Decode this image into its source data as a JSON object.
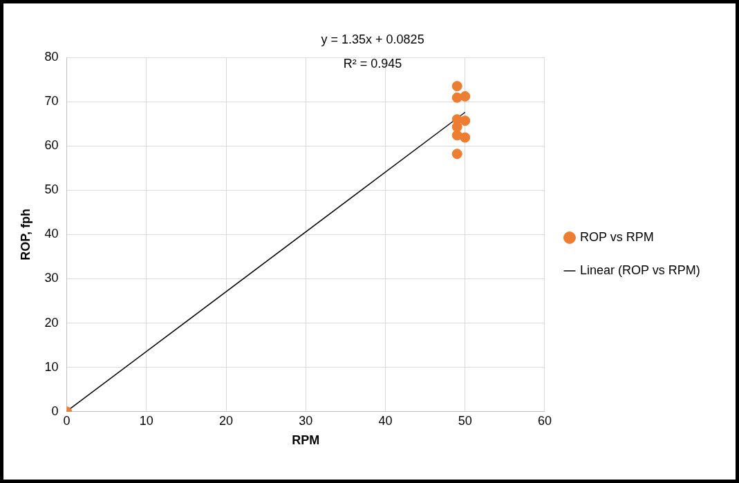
{
  "chart_data": {
    "type": "scatter",
    "xlabel": "RPM",
    "ylabel": "ROP, fph",
    "xlim": [
      0,
      60
    ],
    "xticks": [
      0,
      10,
      20,
      30,
      40,
      50,
      60
    ],
    "ylim": [
      0,
      80
    ],
    "yticks": [
      0,
      10,
      20,
      30,
      40,
      50,
      60,
      70,
      80
    ],
    "grid": true,
    "legend": "right",
    "marker": "circle",
    "annotations": [
      "y = 1.35x + 0.0825",
      "R² = 0.945"
    ],
    "series": [
      {
        "name": "ROP vs RPM",
        "type": "scatter",
        "color": "#ed7d31",
        "x": [
          0,
          49,
          49,
          50,
          49,
          50,
          49,
          49,
          50,
          49
        ],
        "values": [
          0,
          73.5,
          70.9,
          71.2,
          66,
          65.7,
          64.3,
          62.4,
          61.9,
          58.2
        ]
      },
      {
        "name": "Linear (ROP vs RPM)",
        "type": "line",
        "color": "#000000",
        "marker": "none",
        "x": [
          0,
          50
        ],
        "values": [
          0.1,
          67.6
        ]
      }
    ]
  }
}
